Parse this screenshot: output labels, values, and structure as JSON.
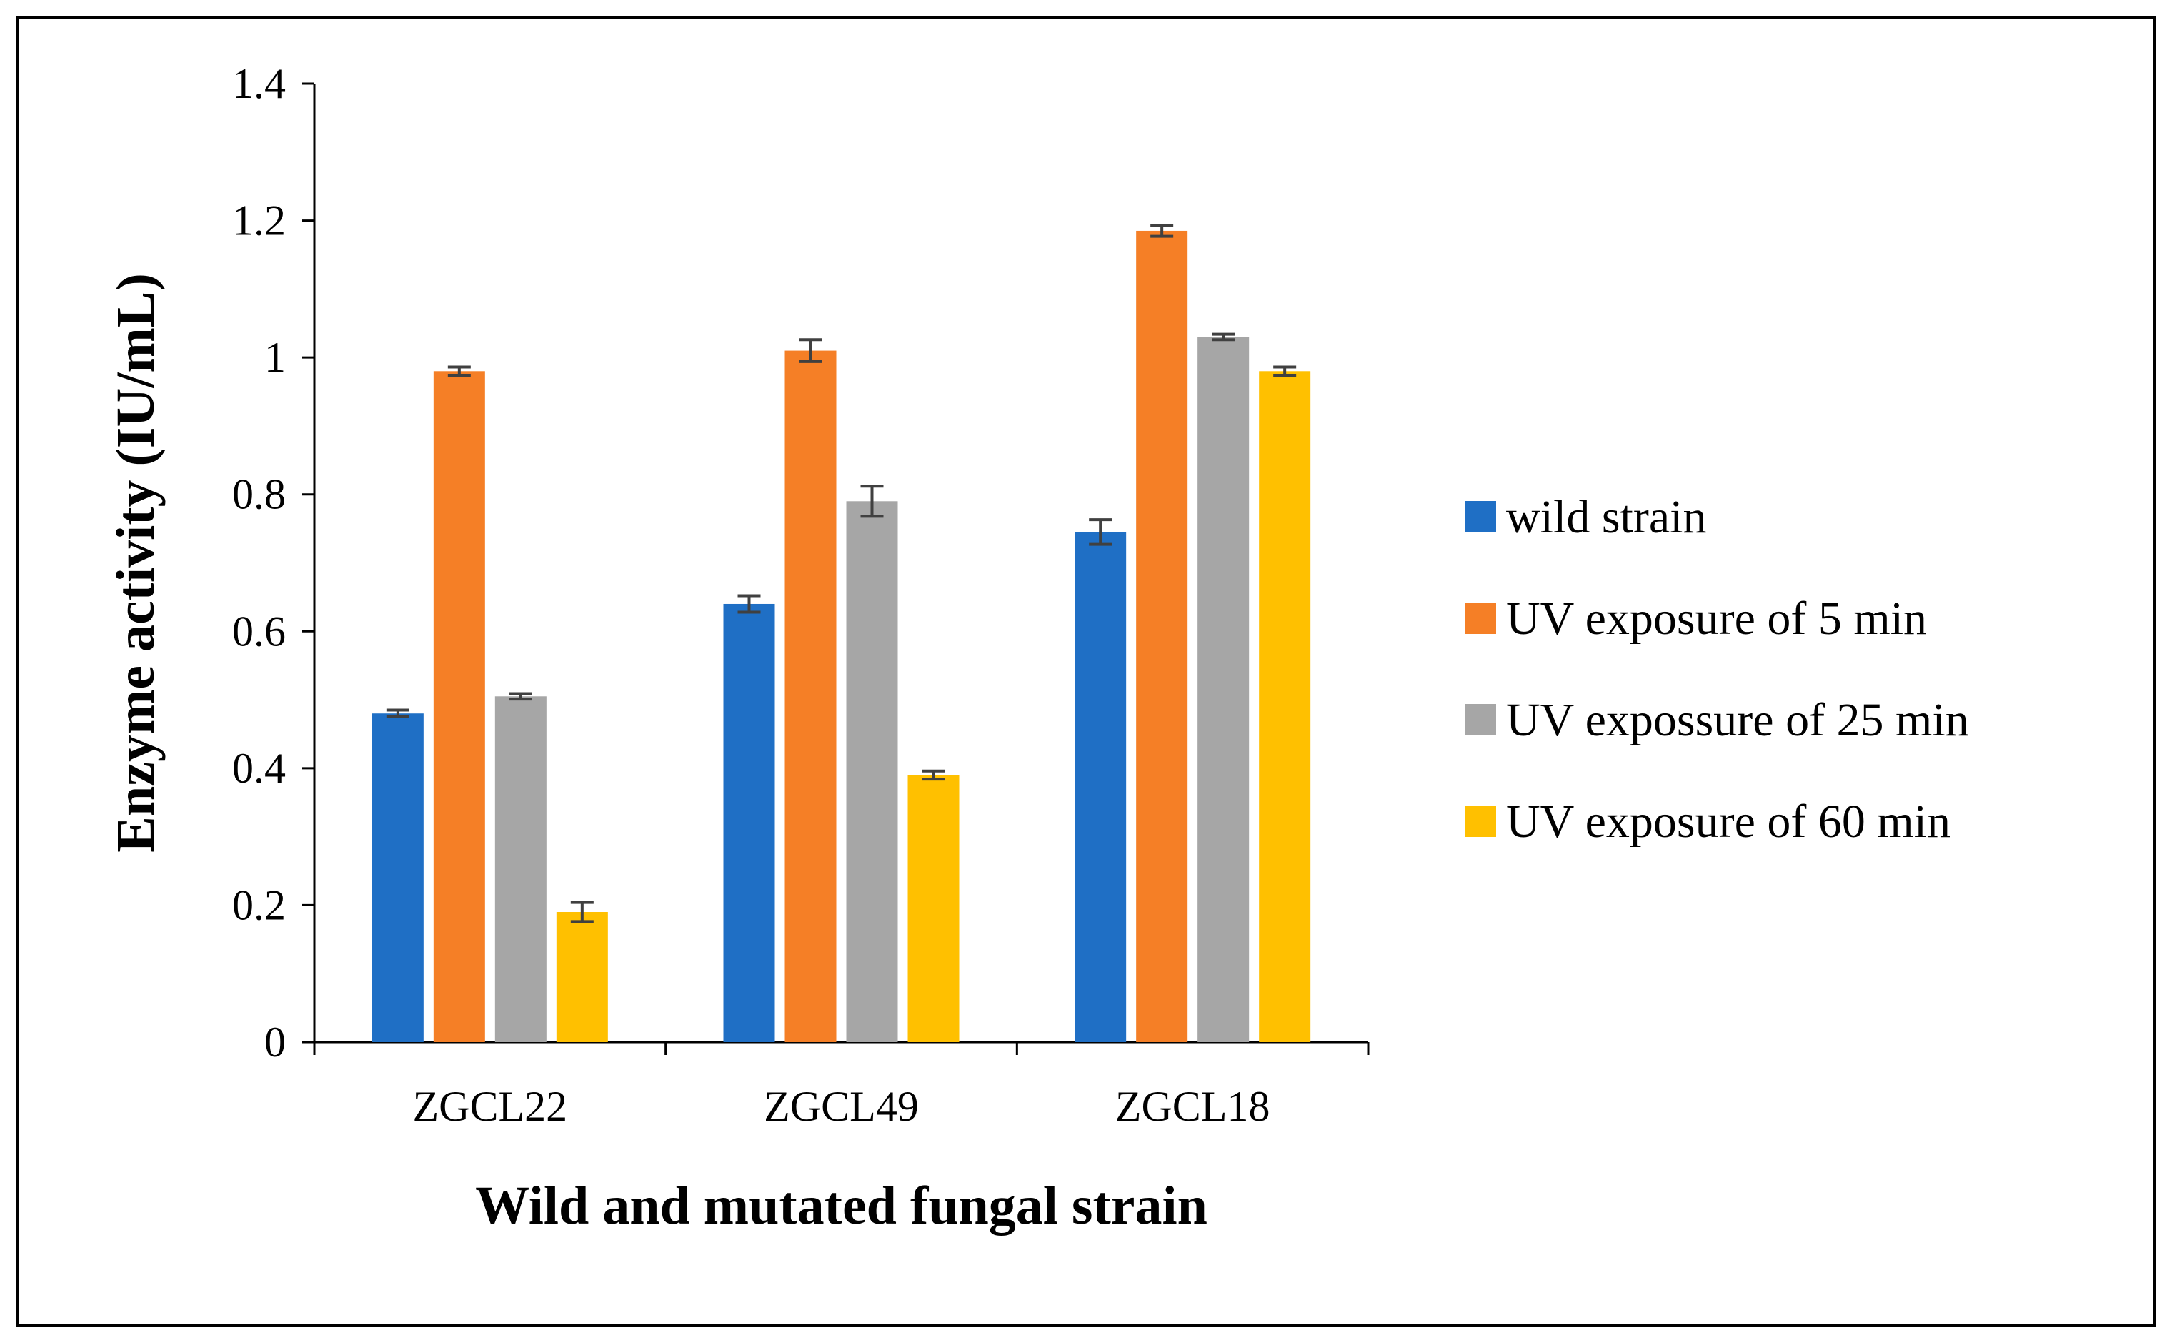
{
  "chart_data": {
    "type": "bar",
    "title": "",
    "xlabel": "Wild and mutated fungal strain",
    "ylabel": "Enzyme activity (IU/mL)",
    "ylim": [
      0,
      1.4
    ],
    "yticks": [
      "0",
      "0.2",
      "0.4",
      "0.6",
      "0.8",
      "1",
      "1.2",
      "1.4"
    ],
    "categories": [
      "ZGCL22",
      "ZGCL49",
      "ZGCL18"
    ],
    "series": [
      {
        "name": "wild strain",
        "color": "#1f6fc5",
        "values": [
          0.48,
          0.64,
          0.745
        ],
        "errors": [
          0.005,
          0.012,
          0.018
        ]
      },
      {
        "name": "UV exposure of 5 min",
        "color": "#f57f26",
        "values": [
          0.98,
          1.01,
          1.185
        ],
        "errors": [
          0.006,
          0.016,
          0.008
        ]
      },
      {
        "name": "UV expossure of 25 min",
        "color": "#a6a6a6",
        "values": [
          0.505,
          0.79,
          1.03
        ],
        "errors": [
          0.004,
          0.022,
          0.004
        ]
      },
      {
        "name": "UV exposure of 60 min",
        "color": "#ffc000",
        "values": [
          0.19,
          0.39,
          0.98
        ],
        "errors": [
          0.014,
          0.006,
          0.006
        ]
      }
    ],
    "legend_position": "right"
  }
}
